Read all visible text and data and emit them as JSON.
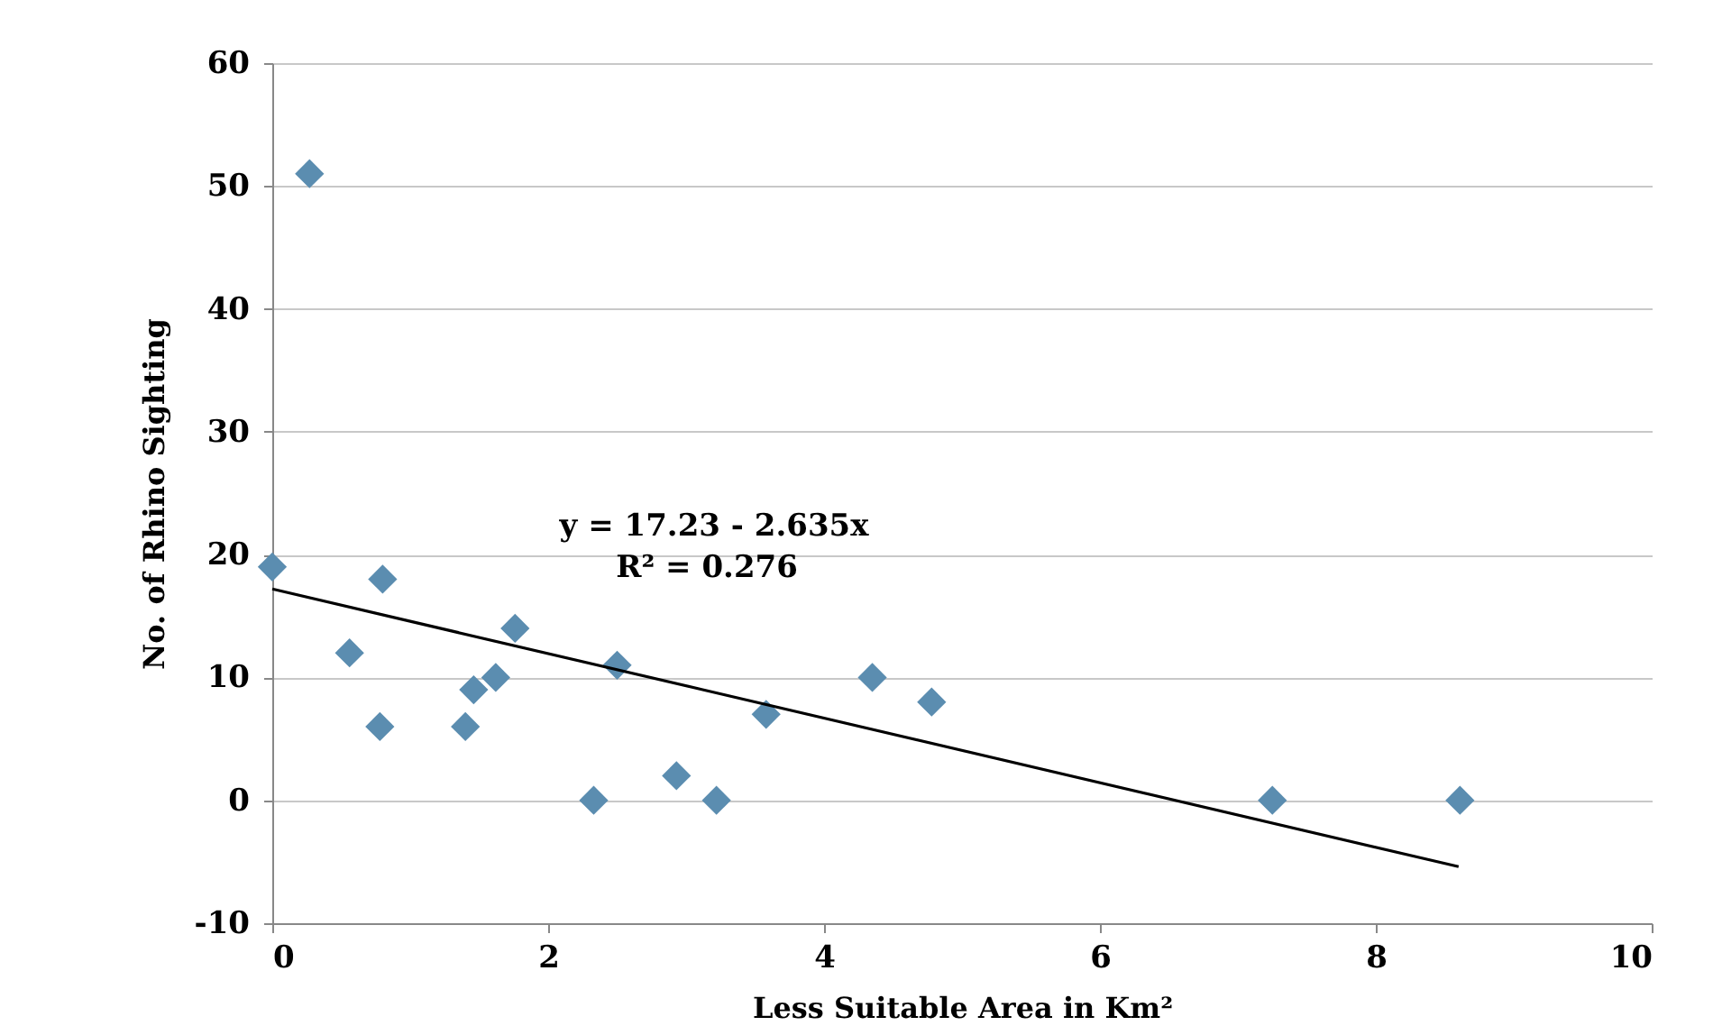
{
  "chart_data": {
    "type": "scatter",
    "xlabel": "Less Suitable Area in Km²",
    "ylabel": "No. of Rhino Sighting",
    "annotations": [
      "y = 17.23 - 2.635x",
      "R² = 0.276"
    ],
    "series": [
      {
        "color": "#5b8db0",
        "marker": "diamond",
        "x": [
          0,
          0.27,
          0.56,
          0.8,
          0.78,
          1.4,
          1.46,
          1.62,
          1.76,
          2.33,
          2.5,
          2.93,
          3.22,
          3.58,
          4.35,
          4.78,
          7.25,
          8.61
        ],
        "values": [
          19,
          51,
          12,
          18,
          6,
          6,
          9,
          10,
          14,
          0,
          11,
          2,
          0,
          7,
          10,
          8,
          0,
          0
        ]
      },
      {
        "type": "line",
        "color": "#000000",
        "marker": "none",
        "x": [
          0,
          8.6
        ],
        "values": [
          17.2,
          -5.4
        ]
      }
    ],
    "xlim": [
      0,
      10
    ],
    "xticks": [
      0,
      2,
      4,
      6,
      8,
      10
    ],
    "ylim": [
      -10,
      60
    ],
    "yticks": [
      -10,
      0,
      10,
      20,
      30,
      40,
      50,
      60
    ],
    "grid": "y"
  }
}
